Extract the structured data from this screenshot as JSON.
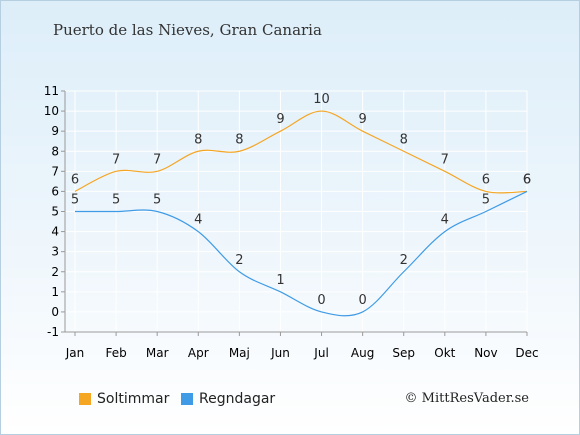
{
  "title": "Puerto de las Nieves, Gran Canaria",
  "copyright": "© MittResVader.se",
  "colors": {
    "sun": "#f5a623",
    "rain": "#3f9be6",
    "axis": "#999999",
    "grid": "#ffffff"
  },
  "chart_data": {
    "type": "line",
    "categories": [
      "Jan",
      "Feb",
      "Mar",
      "Apr",
      "Maj",
      "Jun",
      "Jul",
      "Aug",
      "Sep",
      "Okt",
      "Nov",
      "Dec"
    ],
    "y_ticks": [
      "-1",
      "0",
      "1",
      "2",
      "3",
      "4",
      "5",
      "6",
      "7",
      "8",
      "9",
      "10",
      "11"
    ],
    "ylim": [
      -1,
      11
    ],
    "grid": true,
    "legend_position": "bottom-left",
    "series": [
      {
        "name": "Soltimmar",
        "values": [
          6,
          7,
          7,
          8,
          8,
          9,
          10,
          9,
          8,
          7,
          6,
          6
        ]
      },
      {
        "name": "Regndagar",
        "values": [
          5,
          5,
          5,
          4,
          2,
          1,
          0,
          0,
          2,
          4,
          5,
          6
        ]
      }
    ]
  }
}
